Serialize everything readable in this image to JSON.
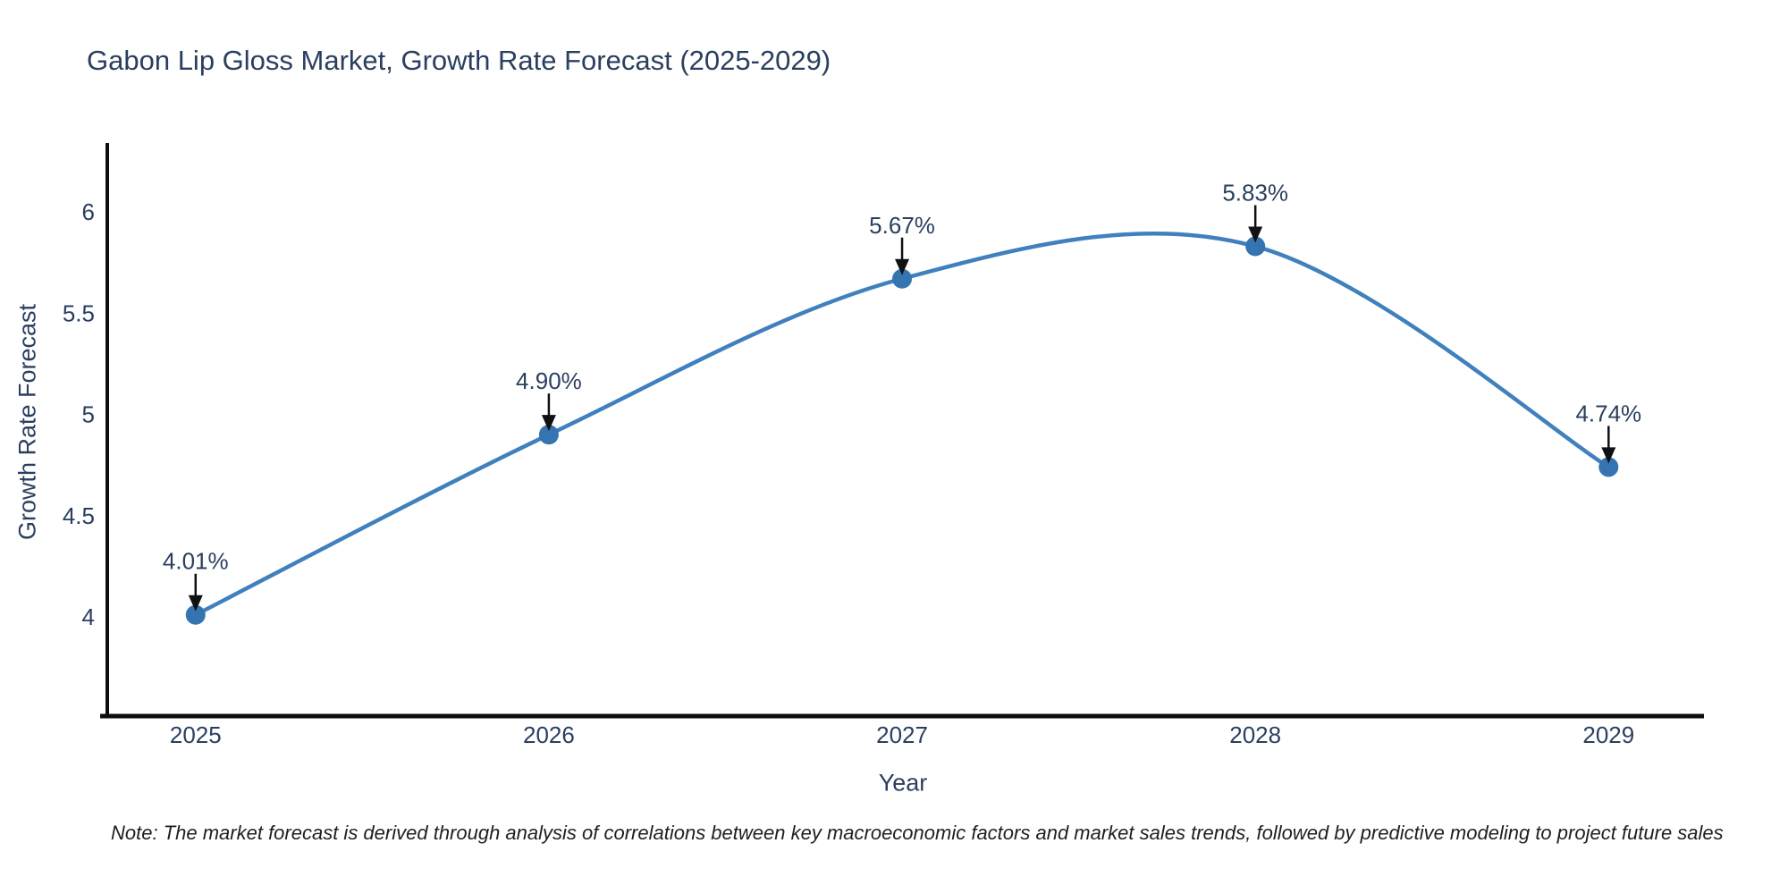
{
  "title": "Gabon Lip Gloss Market, Growth Rate Forecast (2025-2029)",
  "note": "Note: The market forecast is derived through analysis of correlations between key macroeconomic factors and market sales trends, followed by predictive modeling to project future sales",
  "chart_data": {
    "type": "line",
    "title": "Gabon Lip Gloss Market, Growth Rate Forecast (2025-2029)",
    "xlabel": "Year",
    "ylabel": "Growth Rate Forecast",
    "x": [
      2025,
      2026,
      2027,
      2028,
      2029
    ],
    "series": [
      {
        "name": "Growth Rate Forecast",
        "values": [
          4.01,
          4.9,
          5.67,
          5.83,
          4.74
        ]
      }
    ],
    "point_labels": [
      "4.01%",
      "4.90%",
      "5.67%",
      "5.83%",
      "4.74%"
    ],
    "yticks": [
      4,
      4.5,
      5,
      5.5,
      6
    ],
    "xlim": [
      2024.75,
      2029.27
    ],
    "ylim": [
      3.51,
      6.34
    ],
    "line_shape": "spline",
    "grid": false,
    "legend": "none",
    "colors": {
      "line": "#4080bd",
      "marker": "#3474b0",
      "arrow": "#111111",
      "axis": "#0d0d0d",
      "tick_text": "#2a3f5f",
      "annotation_text": "#2a3f5f",
      "title_text": "#2a3f5f",
      "note_text": "#1f1f1f"
    }
  }
}
